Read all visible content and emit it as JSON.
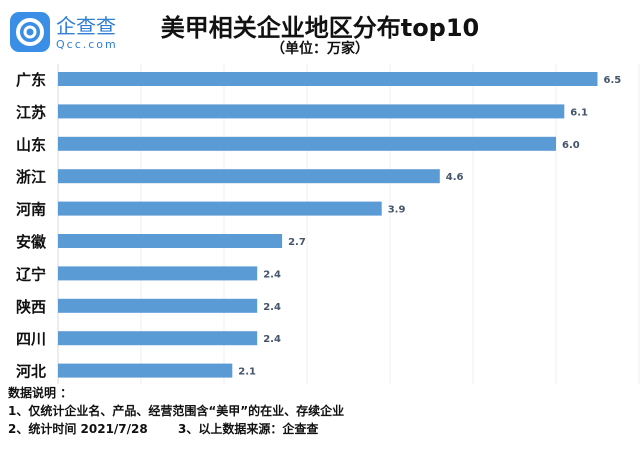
{
  "logo": {
    "name": "企查查",
    "sub": "Qcc.com"
  },
  "chart_data": {
    "type": "bar",
    "orientation": "horizontal",
    "title": "美甲相关企业地区分布top10",
    "subtitle": "（单位：万家）",
    "categories": [
      "广东",
      "江苏",
      "山东",
      "浙江",
      "河南",
      "安徽",
      "辽宁",
      "陕西",
      "四川",
      "河北"
    ],
    "values": [
      6.5,
      6.1,
      6.0,
      4.6,
      3.9,
      2.7,
      2.4,
      2.4,
      2.4,
      2.1
    ],
    "labels": [
      "6.5",
      "6.1",
      "6.0",
      "4.6",
      "3.9",
      "2.7",
      "2.4",
      "2.4",
      "2.4",
      "2.1"
    ],
    "xlim": [
      0,
      7
    ],
    "grid": true,
    "color": "#5b9bd5",
    "label_color": "#44546a"
  },
  "notes": {
    "heading": "数据说明 ：",
    "line1": "1、仅统计企业名、产品、经营范围含“美甲”的在业、存续企业",
    "line2a": "2、统计时间 2021/7/28",
    "line2b": "3、以上数据来源：企查查"
  }
}
